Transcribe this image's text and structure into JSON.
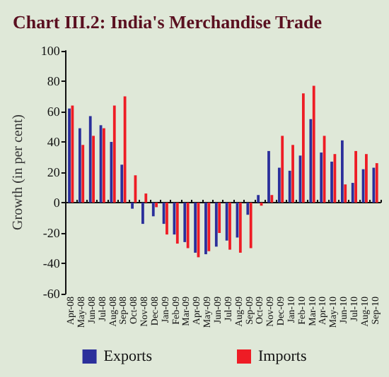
{
  "chart_data": {
    "type": "bar",
    "title": "Chart III.2: India's Merchandise Trade",
    "ylabel": "Growth (in per cent)",
    "categories": [
      "Apr-08",
      "May-08",
      "Jun-08",
      "Jul-08",
      "Aug-08",
      "Sep-08",
      "Oct-08",
      "Nov-08",
      "Dec-08",
      "Jan-09",
      "Feb-09",
      "Mar-09",
      "Apr-09",
      "May-09",
      "Jun-09",
      "Jul-09",
      "Aug-09",
      "Sep-09",
      "Oct-09",
      "Nov-09",
      "Dec-09",
      "Jan-10",
      "Feb-10",
      "Mar-10",
      "Apr-10",
      "May-10",
      "Jun-10",
      "Jul-10",
      "Aug-10",
      "Sep-10"
    ],
    "series": [
      {
        "name": "Exports",
        "color": "#2b2f9b",
        "values": [
          62,
          49,
          57,
          51,
          40,
          25,
          -4,
          -14,
          -9,
          -14,
          -21,
          -26,
          -33,
          -34,
          -29,
          -25,
          -23,
          -8,
          5,
          34,
          23,
          21,
          31,
          55,
          33,
          27,
          41,
          13,
          22,
          23
        ]
      },
      {
        "name": "Imports",
        "color": "#ee1c25",
        "values": [
          64,
          38,
          44,
          49,
          64,
          70,
          18,
          6,
          -3,
          -21,
          -27,
          -30,
          -36,
          -32,
          -20,
          -31,
          -33,
          -30,
          -2,
          5,
          44,
          38,
          72,
          77,
          44,
          32,
          12,
          34,
          32,
          26
        ]
      }
    ],
    "ylim": [
      -60,
      100
    ],
    "yticks": [
      -60,
      -40,
      -20,
      0,
      20,
      40,
      60,
      80,
      100
    ],
    "legend": "bottom"
  }
}
